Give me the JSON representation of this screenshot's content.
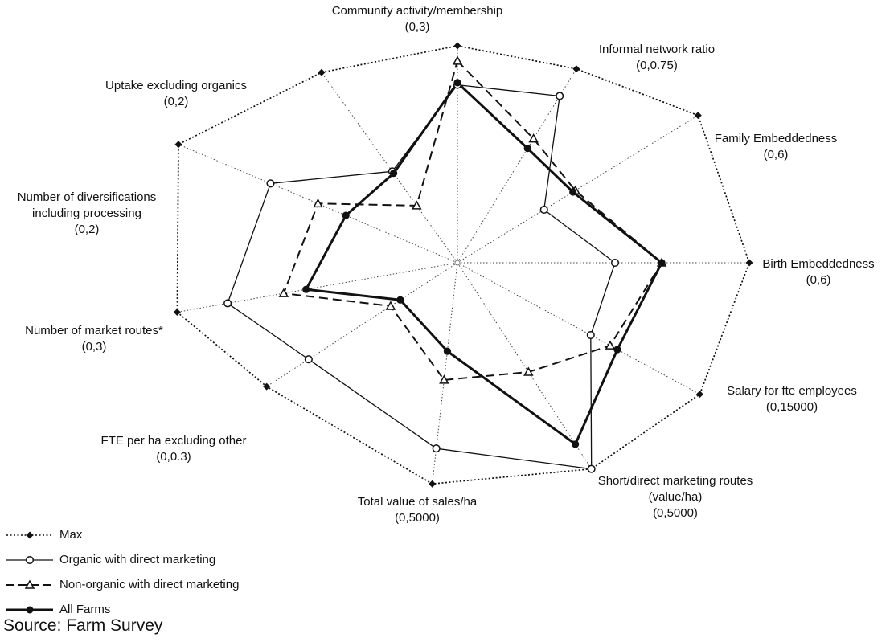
{
  "chart_data": {
    "type": "radar",
    "axes": [
      {
        "label": [
          "Community activity/membership",
          "(0,3)"
        ],
        "angle": 90
      },
      {
        "label": [
          "Informal network ratio",
          "(0,0.75)"
        ],
        "angle": 58.5
      },
      {
        "label": [
          "Family Embeddedness",
          "(0,6)"
        ],
        "angle": 31.5
      },
      {
        "label": [
          "Birth Embeddedness",
          "(0,6)"
        ],
        "angle": 0
      },
      {
        "label": [
          "Salary for fte employees",
          "(0,15000)"
        ],
        "angle": -28.5
      },
      {
        "label": [
          "Short/direct marketing routes",
          "(value/ha)",
          "(0,5000)"
        ],
        "angle": -57
      },
      {
        "label": [
          "Total value of sales/ha",
          "(0,5000)"
        ],
        "angle": -96.5
      },
      {
        "label": [
          "FTE per ha excluding other",
          "(0,0.3)"
        ],
        "angle": -147
      },
      {
        "label": [
          "Number of market routes*",
          "(0,3)"
        ],
        "angle": -170
      },
      {
        "label": [
          "Number of diversifications",
          "including processing",
          "(0,2)"
        ],
        "angle": 157
      },
      {
        "label": [
          "Uptake excluding organics",
          "(0,2)"
        ],
        "angle": 125.5
      }
    ],
    "series": [
      {
        "name": "Max",
        "style": "dotted",
        "marker": "diamond",
        "values": [
          1,
          1,
          1,
          1,
          1,
          1,
          1,
          1,
          1,
          1,
          1
        ]
      },
      {
        "name": "Organic with direct marketing",
        "style": "thin",
        "marker": "open-circle",
        "values": [
          0.82,
          0.86,
          0.36,
          0.54,
          0.55,
          1.0,
          0.84,
          0.78,
          0.82,
          0.67,
          0.48
        ]
      },
      {
        "name": "Non-organic with direct marketing",
        "style": "dashed",
        "marker": "open-triangle",
        "values": [
          0.93,
          0.64,
          0.49,
          0.7,
          0.63,
          0.53,
          0.53,
          0.35,
          0.62,
          0.5,
          0.3
        ]
      },
      {
        "name": "All Farms",
        "style": "thick",
        "marker": "filled-circle",
        "values": [
          0.83,
          0.59,
          0.48,
          0.7,
          0.66,
          0.88,
          0.4,
          0.3,
          0.54,
          0.4,
          0.47
        ]
      }
    ]
  },
  "source": "Source: Farm Survey"
}
